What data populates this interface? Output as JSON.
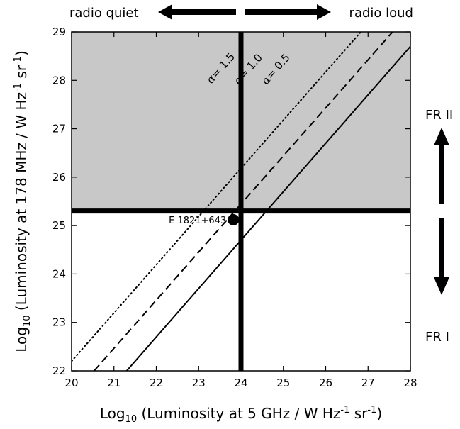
{
  "chart_data": {
    "type": "line",
    "xlabel": "Log10 (Luminosity at 5 GHz / W Hz-1 sr-1)",
    "ylabel": "Log10 (Luminosity at 178 MHz / W Hz-1 sr-1)",
    "xlabel_parts": {
      "base": "Log",
      "sub": "10",
      "pre": " (Luminosity at 5 GHz / W Hz",
      "sup1": "-1",
      "mid": " sr",
      "sup2": "-1",
      "post": ")"
    },
    "ylabel_parts": {
      "base": "Log",
      "sub": "10",
      "pre": " (Luminosity at 178 MHz / W Hz",
      "sup1": "-1",
      "mid": " sr",
      "sup2": "-1",
      "post": ")"
    },
    "xlim": [
      20,
      28
    ],
    "ylim": [
      22,
      29
    ],
    "x_ticks": [
      "20",
      "21",
      "22",
      "23",
      "24",
      "25",
      "26",
      "27",
      "28"
    ],
    "y_ticks": [
      "22",
      "23",
      "24",
      "25",
      "26",
      "27",
      "28",
      "29"
    ],
    "grid": false,
    "series": [
      {
        "name": "α = 1.5",
        "label_prefix": "α",
        "label_value": "= 1.5",
        "style": "dotted",
        "points": [
          [
            20,
            22.2
          ],
          [
            26.83,
            29
          ]
        ]
      },
      {
        "name": "α = 1.0",
        "label_prefix": "α",
        "label_value": "= 1.0",
        "style": "dashed",
        "points": [
          [
            20.53,
            22
          ],
          [
            27.58,
            29
          ]
        ]
      },
      {
        "name": "α = 0.5",
        "label_prefix": "α",
        "label_value": "= 0.5",
        "style": "solid",
        "points": [
          [
            21.3,
            22
          ],
          [
            28,
            28.7
          ]
        ]
      }
    ],
    "threshold_lines": {
      "x": 24.0,
      "y": 25.3
    },
    "shaded_region": {
      "y_from": 25.3,
      "y_to": 29,
      "color": "#c8c8c8"
    },
    "source_point": {
      "label": "E 1821+643",
      "x": 23.82,
      "y": 25.12
    },
    "annotations": {
      "radio_quiet": "radio quiet",
      "radio_loud": "radio loud",
      "fr2": "FR II",
      "fr1": "FR I"
    }
  }
}
